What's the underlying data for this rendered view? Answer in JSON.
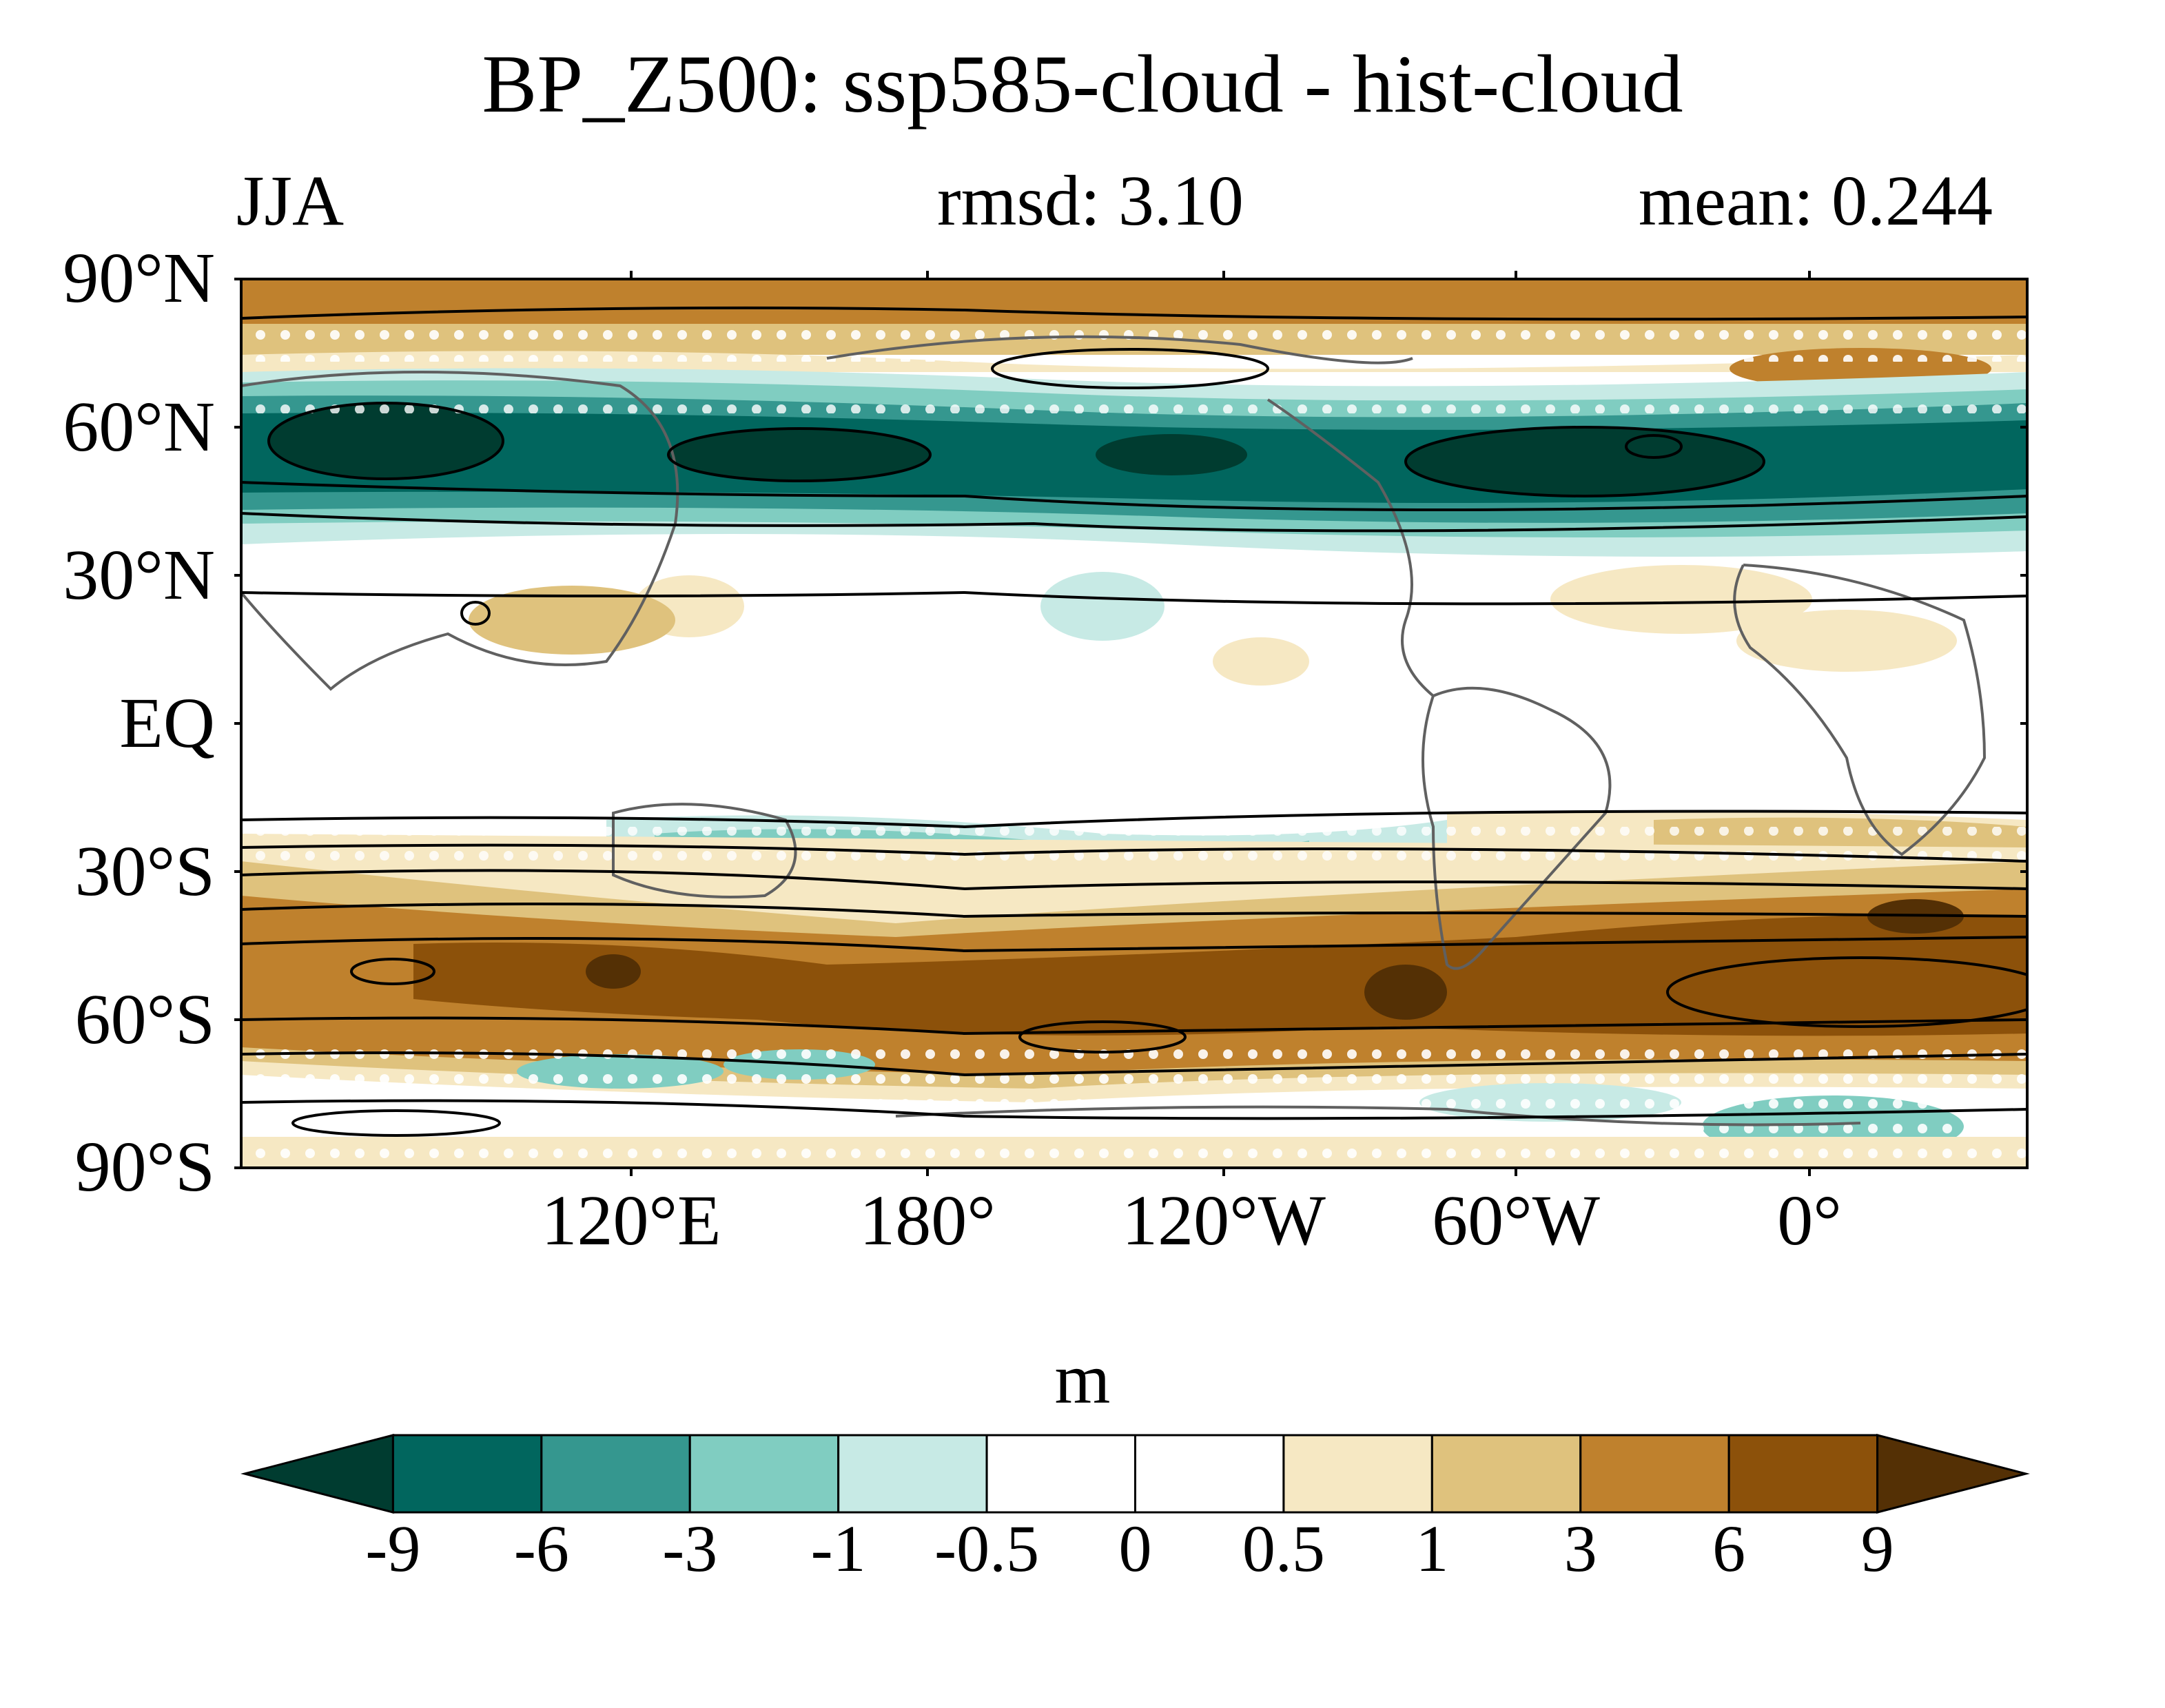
{
  "title": "BP_Z500: ssp585-cloud - hist-cloud",
  "subtitle": {
    "season": "JJA",
    "rmsd": "rmsd: 3.10",
    "mean": "mean: 0.244"
  },
  "lat_labels": [
    "90°N",
    "60°N",
    "30°N",
    "EQ",
    "30°S",
    "60°S",
    "90°S"
  ],
  "lon_labels": [
    "120°E",
    "180°",
    "120°W",
    "60°W",
    "0°"
  ],
  "colorbar": {
    "units": "m",
    "levels": [
      "-9",
      "-6",
      "-3",
      "-1",
      "-0.5",
      "0",
      "0.5",
      "1",
      "3",
      "6",
      "9"
    ],
    "colors": [
      "#003c30",
      "#01665e",
      "#35978f",
      "#80cdc1",
      "#c7eae5",
      "#ffffff",
      "#ffffff",
      "#f6e8c3",
      "#dfc27d",
      "#bf812d",
      "#8c510a",
      "#543005"
    ]
  },
  "colors": {
    "land_outline": "#606060",
    "contour": "#000000",
    "stipple": "#ffffff"
  }
}
